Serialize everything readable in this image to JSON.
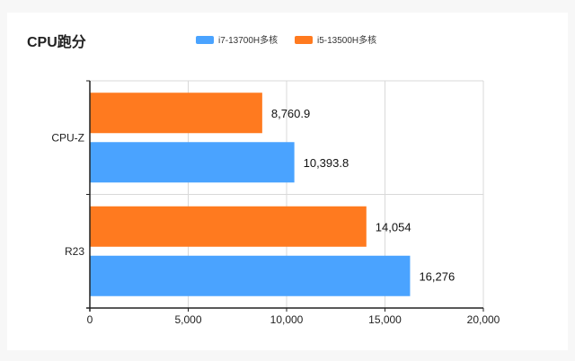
{
  "chart_data": {
    "type": "bar",
    "orientation": "horizontal",
    "title": "CPU跑分",
    "categories": [
      "CPU-Z",
      "R23"
    ],
    "series": [
      {
        "name": "i7-13700H多核",
        "color": "#4aa3ff",
        "values": [
          10393.8,
          16276
        ],
        "labels": [
          "10,393.8",
          "16,276"
        ]
      },
      {
        "name": "i5-13500H多核",
        "color": "#ff7a1f",
        "values": [
          8760.9,
          14054
        ],
        "labels": [
          "8,760.9",
          "14,054"
        ]
      }
    ],
    "xlim": [
      0,
      20000
    ],
    "xticks": [
      0,
      5000,
      10000,
      15000,
      20000
    ],
    "xtick_labels": [
      "0",
      "5,000",
      "10,000",
      "15,000",
      "20,000"
    ],
    "xlabel": "",
    "ylabel": "",
    "grid": true,
    "legend_position": "top"
  }
}
